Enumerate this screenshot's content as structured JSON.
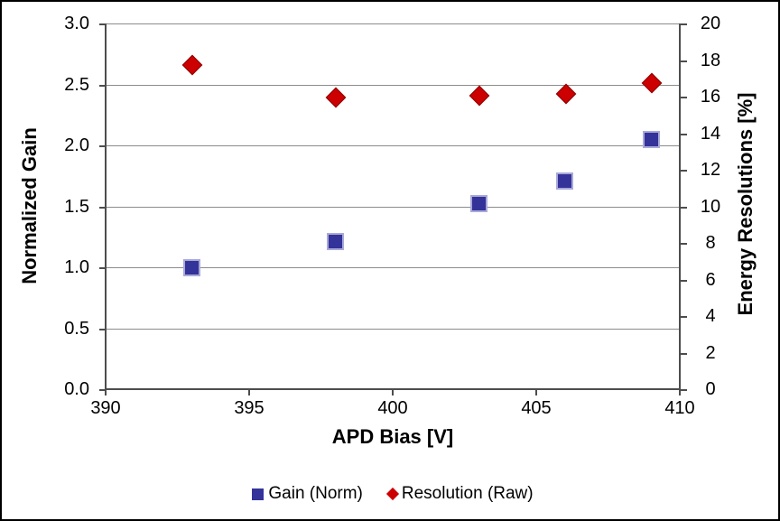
{
  "chart_data": {
    "type": "scatter",
    "title": "",
    "x": [
      393,
      398,
      403,
      406,
      409
    ],
    "series": [
      {
        "name": "Gain (Norm)",
        "axis": "left",
        "marker": "square",
        "color": "#333399",
        "border_color": "#A9A9D9",
        "values": [
          1.0,
          1.21,
          1.52,
          1.71,
          2.05
        ]
      },
      {
        "name": "Resolution (Raw)",
        "axis": "right",
        "marker": "diamond",
        "color": "#CC0000",
        "border_color": "#8E0000",
        "values": [
          17.8,
          16.0,
          16.1,
          16.2,
          16.8
        ]
      }
    ],
    "xlabel": "APD Bias [V]",
    "ylabel_left": "Normalized Gain",
    "ylabel_right": "Energy Resolutions [%]",
    "x_ticks": [
      "390",
      "395",
      "400",
      "405",
      "410"
    ],
    "y_left_ticks": [
      "3.0",
      "2.5",
      "2.0",
      "1.5",
      "1.0",
      "0.5",
      "0.0"
    ],
    "y_right_ticks": [
      "20",
      "18",
      "16",
      "14",
      "12",
      "10",
      "8",
      "6",
      "4",
      "2",
      "0"
    ],
    "xlim": [
      390,
      410
    ],
    "ylim_left": [
      0.0,
      3.0
    ],
    "ylim_right": [
      0,
      20
    ],
    "grid": "horizontal-only",
    "legend_position": "bottom-center",
    "gridline_color": "#8C8C8C",
    "axis_color": "#4D4D4D"
  }
}
